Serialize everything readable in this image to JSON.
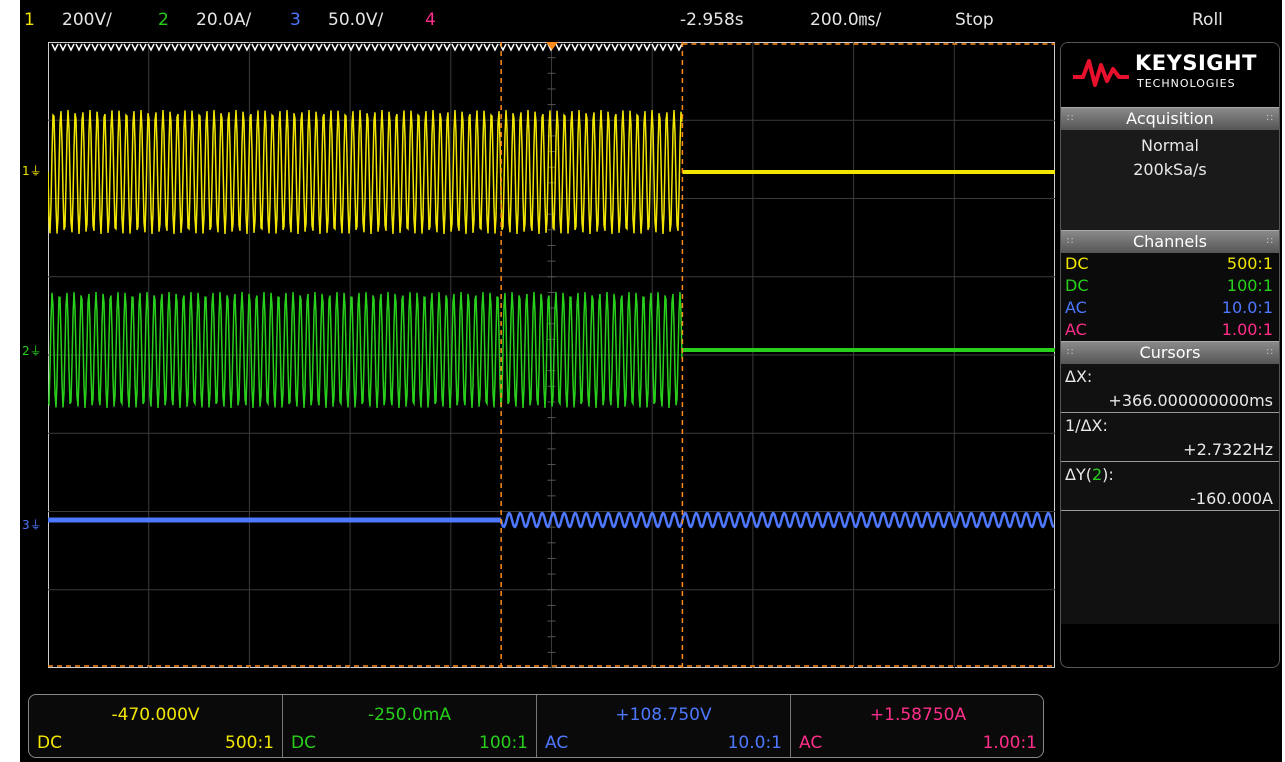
{
  "colors": {
    "ch1": "#f2e600",
    "ch2": "#28d01c",
    "ch3": "#4d78ff",
    "ch4": "#ff2e8a",
    "cursor": "#ff8c1a",
    "text": "#e6e6e6"
  },
  "topbar": {
    "ch1_num": "1",
    "ch1_scale": "200V/",
    "ch2_num": "2",
    "ch2_scale": "20.0A/",
    "ch3_num": "3",
    "ch3_scale": "50.0V/",
    "ch4_num": "4",
    "delay": "-2.958s",
    "timebase": "200.0㎳/",
    "run_state": "Stop",
    "mode": "Roll"
  },
  "logo": {
    "brand": "KEYSIGHT",
    "sub": "TECHNOLOGIES"
  },
  "acquisition": {
    "title": "Acquisition",
    "mode": "Normal",
    "rate": "200kSa/s"
  },
  "channels": {
    "title": "Channels",
    "rows": [
      {
        "coupling": "DC",
        "probe": "500:1"
      },
      {
        "coupling": "DC",
        "probe": "100:1"
      },
      {
        "coupling": "AC",
        "probe": "10.0:1"
      },
      {
        "coupling": "AC",
        "probe": "1.00:1"
      }
    ]
  },
  "cursors": {
    "title": "Cursors",
    "dx_label": "ΔX:",
    "dx_value": "+366.000000000ms",
    "inv_dx_label": "1/ΔX:",
    "inv_dx_value": "+2.7322Hz",
    "dy_label_pre": "ΔY(",
    "dy_channel": "2",
    "dy_label_post": "):",
    "dy_value": "-160.000A"
  },
  "bottom": [
    {
      "value": "-470.000V",
      "coupling": "DC",
      "probe": "500:1"
    },
    {
      "value": "-250.0mA",
      "coupling": "DC",
      "probe": "100:1"
    },
    {
      "value": "+108.750V",
      "coupling": "AC",
      "probe": "10.0:1"
    },
    {
      "value": "+1.58750A",
      "coupling": "AC",
      "probe": "1.00:1"
    }
  ],
  "ground_markers": [
    "1",
    "2",
    "3"
  ],
  "waveforms": {
    "ch1_stop_fraction": 0.63,
    "ch2_stop_fraction": 0.63,
    "ch3_start_fraction": 0.45
  }
}
